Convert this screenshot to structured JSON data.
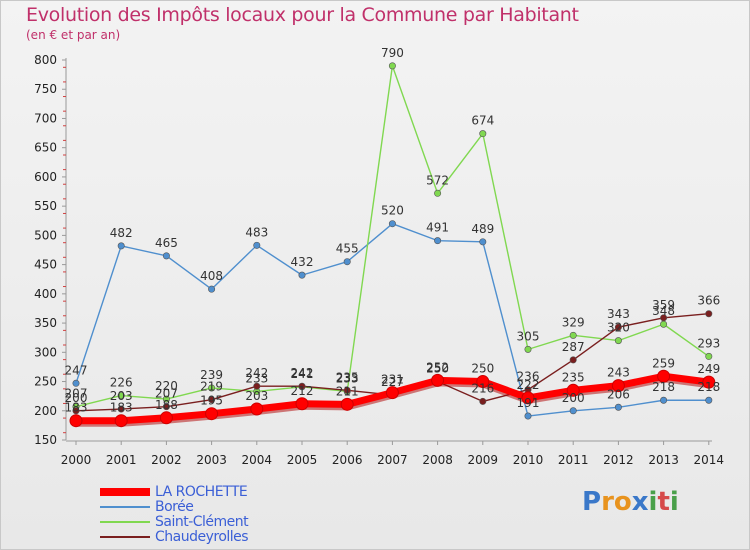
{
  "title": "Evolution des Impôts locaux pour la Commune par Habitant",
  "subtitle": "(en € et par an)",
  "logo": {
    "text": "Proxiti",
    "letters": [
      "P",
      "r",
      "o",
      "x",
      "i",
      "t",
      "i"
    ],
    "colors": [
      "#3a78c9",
      "#e8931e",
      "#e8931e",
      "#3a78c9",
      "#4aa04a",
      "#d64a4a",
      "#4aa04a"
    ]
  },
  "chart_data": {
    "type": "line",
    "title": "Evolution des Impôts locaux pour la Commune par Habitant",
    "ylabel": "(en € et par an)",
    "xlabel": "",
    "ylim": [
      150,
      800
    ],
    "yticks": [
      150,
      200,
      250,
      300,
      350,
      400,
      450,
      500,
      550,
      600,
      650,
      700,
      750,
      800
    ],
    "categories": [
      "2000",
      "2001",
      "2002",
      "2003",
      "2004",
      "2005",
      "2006",
      "2007",
      "2008",
      "2009",
      "2010",
      "2011",
      "2012",
      "2013",
      "2014"
    ],
    "grid": false,
    "legend_position": "bottom-left",
    "series": [
      {
        "name": "LA ROCHETTE",
        "color": "#ff0000",
        "values": [
          183,
          183,
          188,
          195,
          203,
          212,
          211,
          231,
          252,
          250,
          222,
          235,
          243,
          259,
          249
        ],
        "labels": [
          "183",
          "183",
          "188",
          "195",
          "203",
          "212",
          "211",
          "231",
          "252",
          "250",
          "222",
          "235",
          "243",
          "259",
          "249"
        ]
      },
      {
        "name": "Borée",
        "color": "#4f8fce",
        "values": [
          247,
          482,
          465,
          408,
          483,
          432,
          455,
          520,
          491,
          489,
          191,
          200,
          206,
          218,
          218
        ],
        "labels": [
          "247",
          "482",
          "465",
          "408",
          "483",
          "432",
          "455",
          "520",
          "491",
          "489",
          "191",
          "200",
          "206",
          "218",
          "218"
        ]
      },
      {
        "name": "Saint-Clément",
        "color": "#80d850",
        "values": [
          207,
          226,
          220,
          239,
          233,
          241,
          233,
          790,
          572,
          674,
          305,
          329,
          320,
          348,
          293
        ],
        "labels": [
          "207",
          "226",
          "220",
          "239",
          "233",
          "241",
          "233",
          "790",
          "572",
          "674",
          "305",
          "329",
          "320",
          "348",
          "293"
        ]
      },
      {
        "name": "Chaudeyrolles",
        "color": "#7a1f1f",
        "values": [
          200,
          203,
          207,
          219,
          242,
          242,
          235,
          227,
          250,
          216,
          236,
          287,
          343,
          359,
          366
        ],
        "labels": [
          "200",
          "203",
          "207",
          "219",
          "242",
          "242",
          "235",
          "227",
          "250",
          "216",
          "236",
          "287",
          "343",
          "359",
          "366"
        ]
      }
    ]
  }
}
